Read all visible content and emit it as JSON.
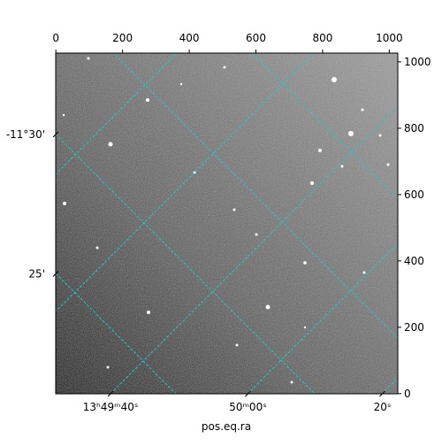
{
  "chart_data": {
    "type": "image",
    "xlabel": "pos.eq.ra",
    "xlim": [
      -0.5,
      1025.5
    ],
    "xticks": [
      0,
      200,
      400,
      600,
      800,
      1000
    ],
    "ylim": [
      -0.5,
      1026.5
    ],
    "yticks": [
      0,
      200,
      400,
      600,
      800,
      1000
    ],
    "world_xticks": [
      {
        "value": 164,
        "label": "13ʰ49ᵐ40ˢ"
      },
      {
        "value": 576,
        "label": "50ᵐ00ˢ"
      },
      {
        "value": 979,
        "label": "20ˢ"
      }
    ],
    "world_yticks": [
      {
        "value": 781,
        "label": "-11°30'"
      },
      {
        "value": 361,
        "label": "25'"
      }
    ],
    "grid": true
  }
}
